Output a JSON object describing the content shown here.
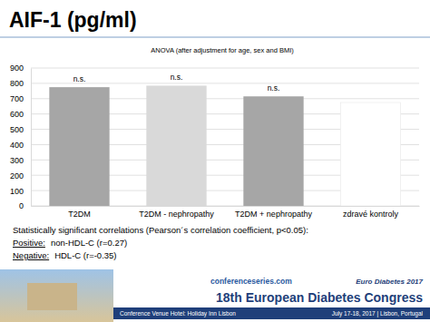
{
  "chart_data": {
    "type": "bar",
    "title": "AIF-1 (pg/ml)",
    "subtitle": "ANOVA (after adjustment for age, sex and BMI)",
    "categories": [
      "T2DM",
      "T2DM - nephropathy",
      "T2DM + nephropathy",
      "zdravé kontroly"
    ],
    "values": [
      775,
      785,
      715,
      675
    ],
    "colors": [
      "#a6a6a6",
      "#d9d9d9",
      "#a6a6a6",
      "#ffffff"
    ],
    "bar_annotations": [
      "n.s.",
      "n.s.",
      "n.s.",
      null
    ],
    "ylim": [
      0,
      900
    ],
    "yticks": [
      0,
      100,
      200,
      300,
      400,
      500,
      600,
      700,
      800,
      900
    ],
    "grid": true,
    "notes": [
      {
        "text": "Statistically significant correlations (Pearson´s correlation coefficient, p<0.05):"
      },
      {
        "label": "Positive:",
        "text": "non-HDL-C (r=0.27)"
      },
      {
        "label": "Negative:",
        "text": "HDL-C (r=-0.35)"
      }
    ]
  },
  "footer": {
    "site": "conferenceseries.com",
    "event": "Euro Diabetes 2017",
    "congress": "18th European Diabetes Congress",
    "venue": "Conference Venue Hotel: Holiday Inn Lisbon",
    "dates": "July 17-18, 2017 | Lisbon, Portugal"
  }
}
